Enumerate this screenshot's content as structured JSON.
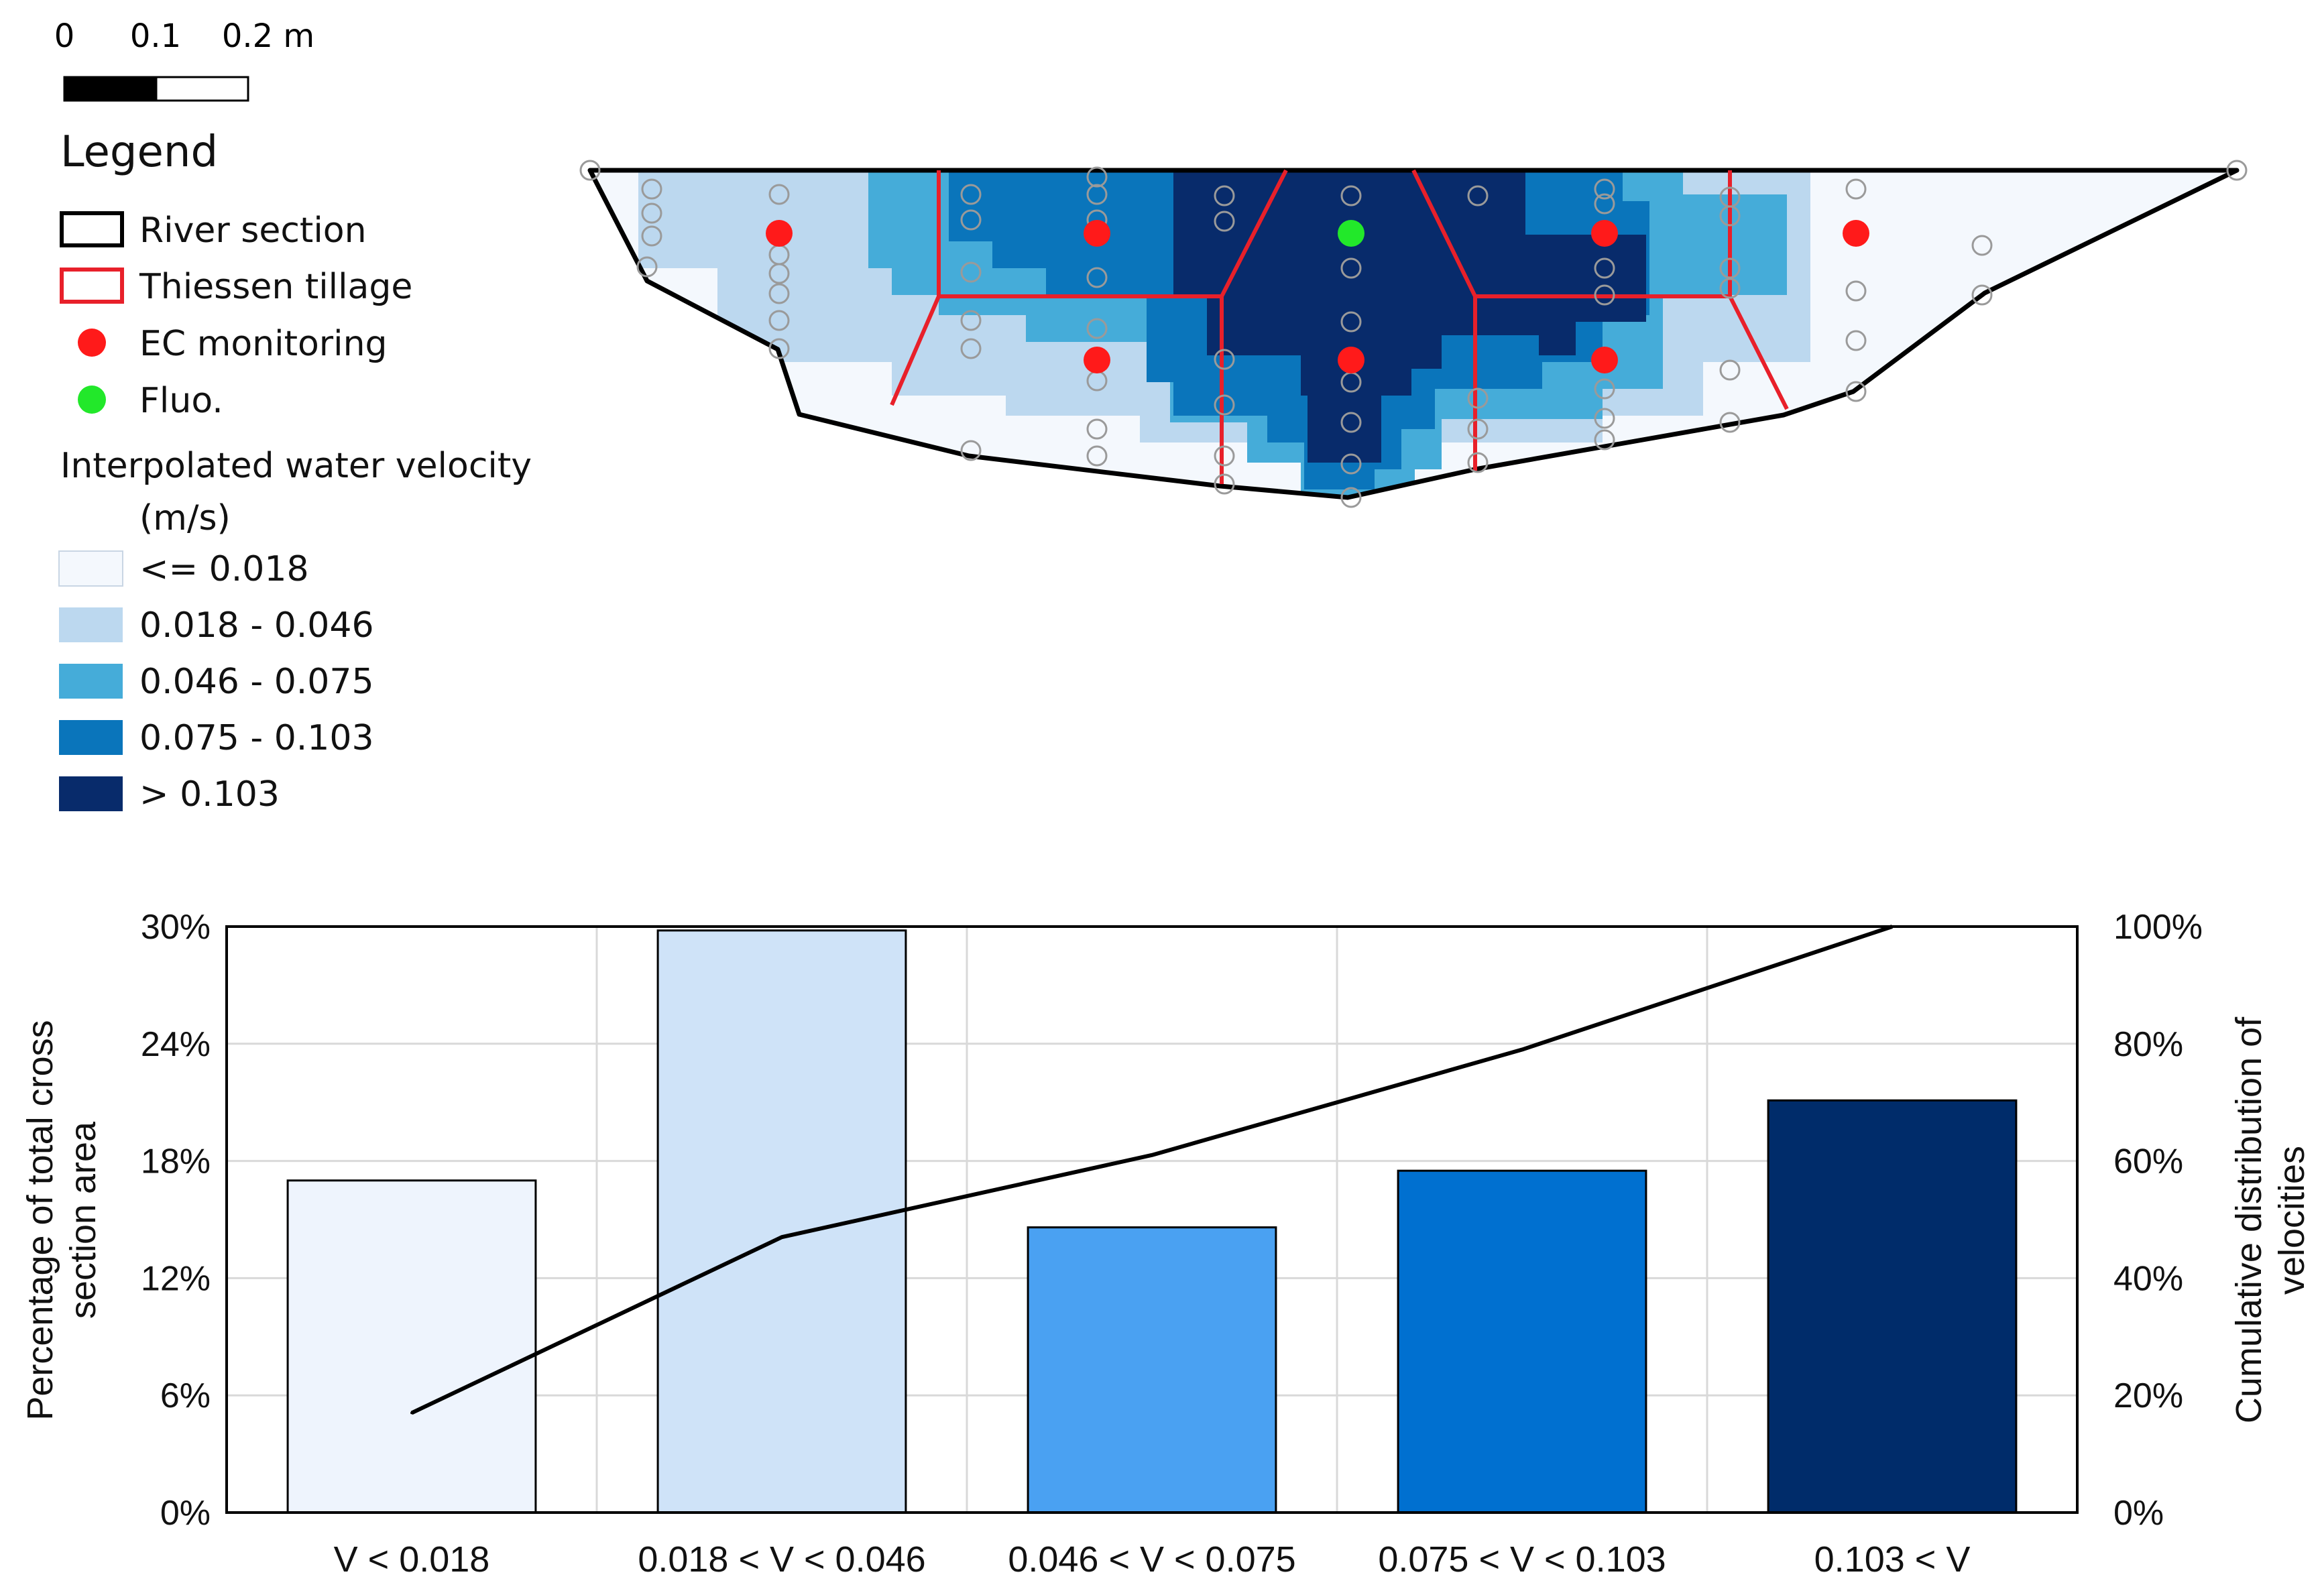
{
  "scale_bar": {
    "labels": [
      "0",
      "0.1",
      "0.2 m"
    ],
    "colors": [
      "#000000",
      "#ffffff"
    ]
  },
  "legend": {
    "title": "Legend",
    "items": [
      {
        "label": "River section",
        "symbol": "box",
        "stroke": "#000000",
        "fill": "#ffffff"
      },
      {
        "label": "Thiessen tillage",
        "symbol": "box",
        "stroke": "#e8202a",
        "fill": "#ffffff"
      },
      {
        "label": "EC monitoring",
        "symbol": "dot",
        "fill": "#ff1a1a"
      },
      {
        "label": "Fluo.",
        "symbol": "dot",
        "fill": "#22e82a"
      }
    ],
    "velocity_title_line1": "Interpolated water velocity",
    "velocity_title_line2": "(m/s)",
    "velocity_classes": [
      {
        "label": "<= 0.018",
        "color": "#f4f8fd"
      },
      {
        "label": "0.018 - 0.046",
        "color": "#bcd8ef"
      },
      {
        "label": "0.046 - 0.075",
        "color": "#45acd9"
      },
      {
        "label": "0.075 - 0.103",
        "color": "#0a75bb"
      },
      {
        "label": "> 0.103",
        "color": "#082b6b"
      }
    ]
  },
  "section_map": {
    "colors": {
      "outline": "#000000",
      "thiessen": "#e8202a",
      "ec_point": "#ff1a1a",
      "fluo_point": "#22e82a",
      "grid_marker": "#9a9a9a"
    }
  },
  "chart_data": {
    "type": "bar",
    "categories": [
      "V < 0.018",
      "0.018 < V < 0.046",
      "0.046 < V < 0.075",
      "0.075 < V < 0.103",
      "0.103 < V"
    ],
    "series": [
      {
        "name": "Percentage of total cross section area",
        "type": "bar",
        "axis": "left",
        "values": [
          17.0,
          29.8,
          14.6,
          17.5,
          21.1
        ],
        "colors": [
          "#eef4fd",
          "#cfe3f8",
          "#4aa1f2",
          "#0070d0",
          "#002c6a"
        ]
      },
      {
        "name": "Cumulative distribution of velocities",
        "type": "line",
        "axis": "right",
        "values": [
          17,
          47,
          61,
          79,
          100
        ],
        "color": "#000000"
      }
    ],
    "ylabel_left_line1": "Percentage of total cross",
    "ylabel_left_line2": "section area",
    "ylabel_right_line1": "Cumulative  distribution of",
    "ylabel_right_line2": "velocities",
    "ylim_left": [
      0,
      30
    ],
    "ylim_right": [
      0,
      100
    ],
    "yticks_left": [
      0,
      6,
      12,
      18,
      24,
      30
    ],
    "yticks_right": [
      0,
      20,
      40,
      60,
      80,
      100
    ],
    "yticklabels_left": [
      "0%",
      "6%",
      "12%",
      "18%",
      "24%",
      "30%"
    ],
    "yticklabels_right": [
      "0%",
      "20%",
      "40%",
      "60%",
      "80%",
      "100%"
    ],
    "grid": true
  }
}
